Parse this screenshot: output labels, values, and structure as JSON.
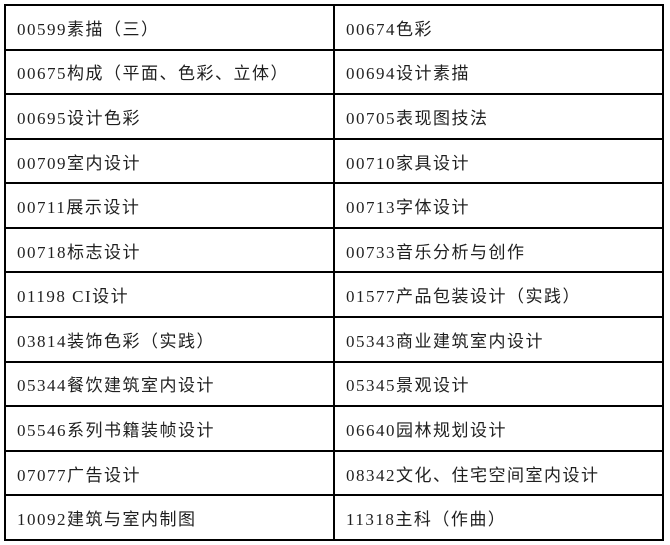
{
  "table": {
    "rows": [
      {
        "left": "00599素描（三）",
        "right": "00674色彩"
      },
      {
        "left": "00675构成（平面、色彩、立体）",
        "right": "00694设计素描"
      },
      {
        "left": "00695设计色彩",
        "right": "00705表现图技法"
      },
      {
        "left": "00709室内设计",
        "right": "00710家具设计"
      },
      {
        "left": "00711展示设计",
        "right": "00713字体设计"
      },
      {
        "left": "00718标志设计",
        "right": "00733音乐分析与创作"
      },
      {
        "left": "01198 CI设计",
        "right": "01577产品包装设计（实践）"
      },
      {
        "left": "03814装饰色彩（实践）",
        "right": "05343商业建筑室内设计"
      },
      {
        "left": "05344餐饮建筑室内设计",
        "right": "05345景观设计"
      },
      {
        "left": "05546系列书籍装帧设计",
        "right": "06640园林规划设计"
      },
      {
        "left": "07077广告设计",
        "right": "08342文化、住宅空间室内设计"
      },
      {
        "left": "10092建筑与室内制图",
        "right": "11318主科（作曲）"
      }
    ]
  },
  "colors": {
    "border": "#000000",
    "text": "#1f1f1f",
    "background": "#ffffff"
  }
}
